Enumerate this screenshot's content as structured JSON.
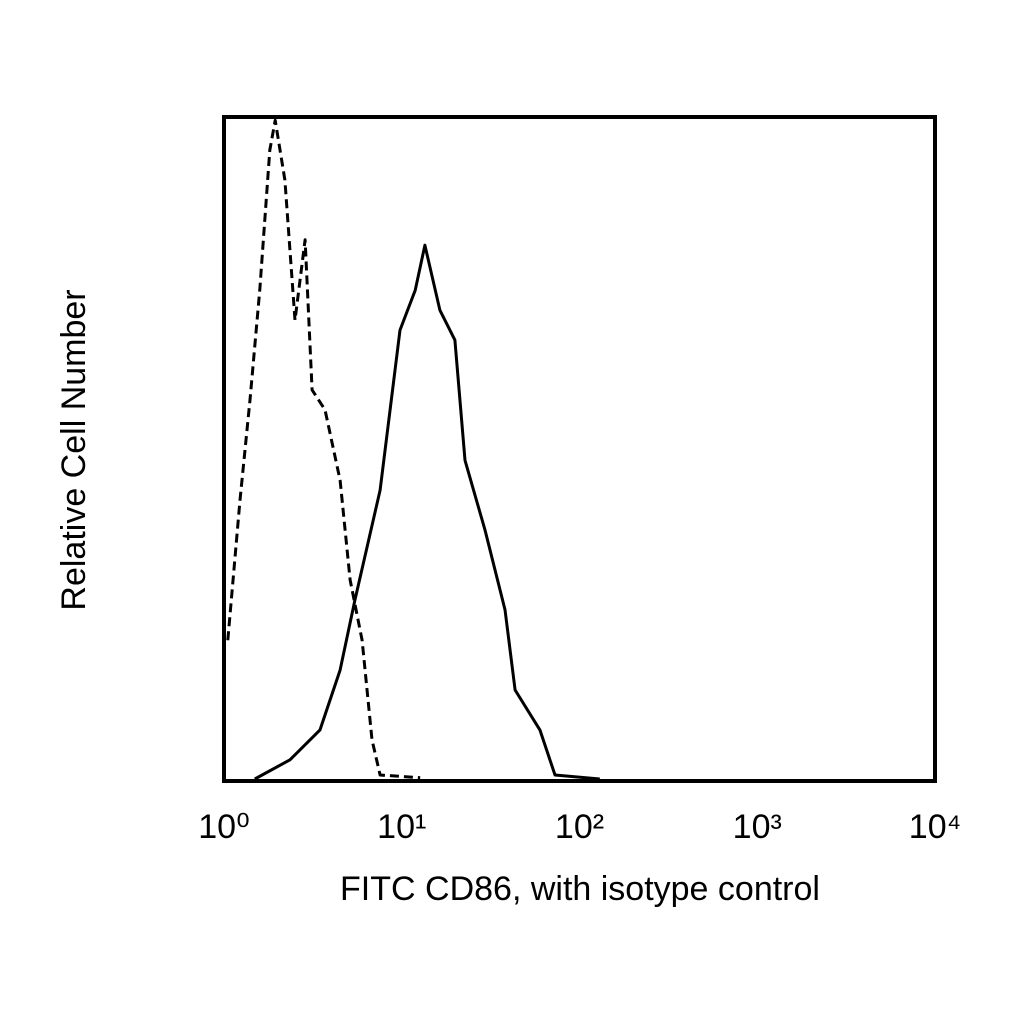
{
  "chart_data": {
    "type": "line",
    "xlabel": "FITC CD86, with isotype control",
    "ylabel": "Relative Cell Number",
    "xscale": "log",
    "xlim": [
      1,
      10000
    ],
    "xticks": [
      {
        "value": 1,
        "label": "10⁰"
      },
      {
        "value": 10,
        "label": "10¹"
      },
      {
        "value": 100,
        "label": "10²"
      },
      {
        "value": 1000,
        "label": "10³"
      },
      {
        "value": 10000,
        "label": "10⁴"
      }
    ],
    "ylim": [
      0,
      100
    ],
    "series": [
      {
        "color": "#000000",
        "linestyle": "dashed",
        "x": [
          1.05,
          1.23,
          1.4,
          1.59,
          1.81,
          1.94,
          2.2,
          2.51,
          2.86,
          3.13,
          3.7,
          4.5,
          5.12,
          5.98,
          6.8,
          7.55,
          12.7
        ],
        "values": [
          21.2,
          42.3,
          57.4,
          74,
          95,
          99.5,
          90.5,
          69.4,
          81.5,
          58.9,
          55.9,
          45.3,
          30.3,
          21.2,
          6.2,
          0.9,
          0.5
        ]
      },
      {
        "color": "#000000",
        "linestyle": "solid",
        "x": [
          1.49,
          2.35,
          3.47,
          4.5,
          5.46,
          7.55,
          9.77,
          11.9,
          13.5,
          16.4,
          19.9,
          22.7,
          29.4,
          38.1,
          43.4,
          59.9,
          72.8,
          130
        ],
        "values": [
          0.3,
          3.2,
          7.7,
          16.7,
          27.3,
          43.8,
          67.9,
          73.9,
          80.7,
          70.9,
          66.4,
          48.3,
          37.8,
          25.8,
          13.7,
          7.7,
          0.9,
          0.3
        ]
      }
    ]
  }
}
